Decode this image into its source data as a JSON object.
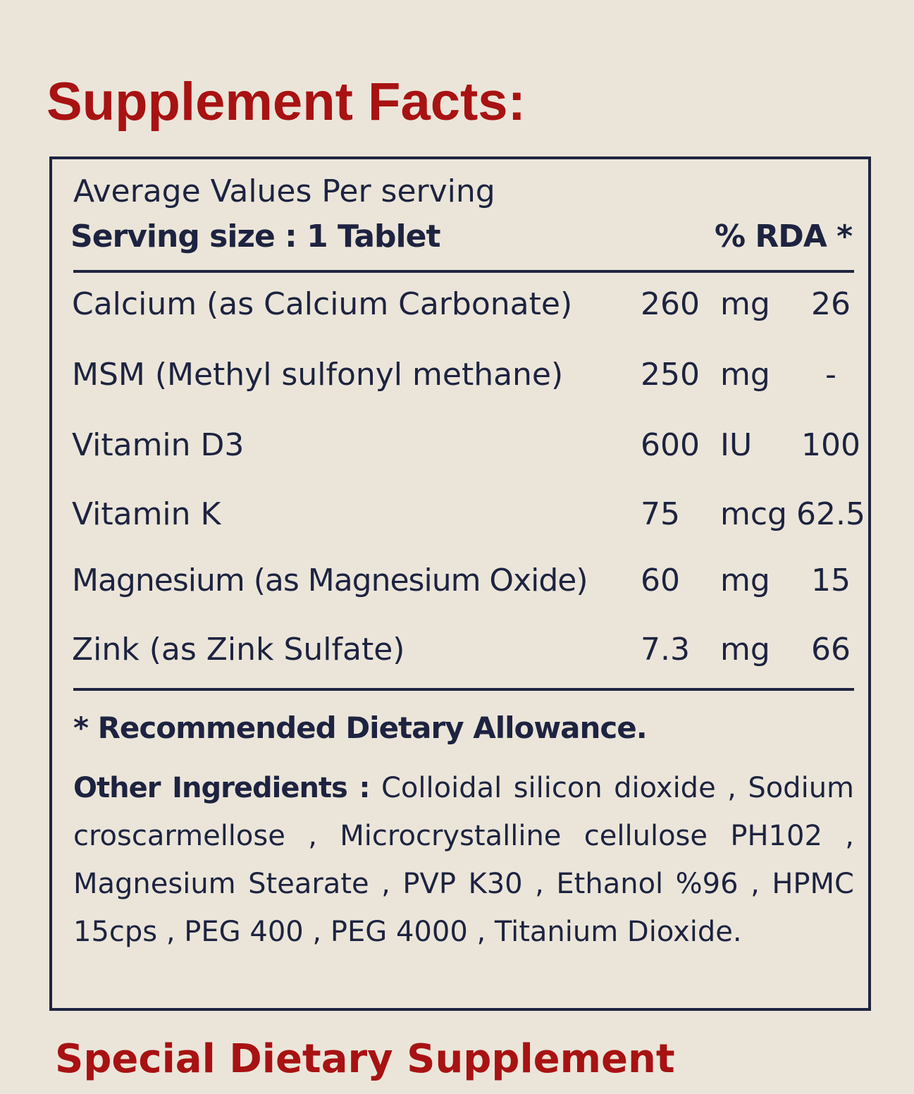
{
  "title": "Supplement Facts:",
  "table": {
    "header": "Average Values Per serving",
    "serving_size": "Serving size : 1 Tablet",
    "rda_header": "% RDA *",
    "rows": [
      {
        "name": "Calcium (as Calcium Carbonate)",
        "amount": "260",
        "unit": "mg",
        "rda": "26"
      },
      {
        "name": "MSM (Methyl sulfonyl methane)",
        "amount": "250",
        "unit": "mg",
        "rda": "-"
      },
      {
        "name": "Vitamin D3",
        "amount": "600",
        "unit": "IU",
        "rda": "100"
      },
      {
        "name": "Vitamin K",
        "amount": "75",
        "unit": "mcg",
        "rda": "62.5"
      },
      {
        "name": "Magnesium (as Magnesium Oxide)",
        "amount": "60",
        "unit": "mg",
        "rda": "15"
      },
      {
        "name": "Zink (as Zink Sulfate)",
        "amount": "7.3",
        "unit": "mg",
        "rda": "66"
      }
    ],
    "footnote": "* Recommended Dietary Allowance.",
    "other_label": "Other Ingredients :",
    "other_text": "Colloidal silicon dioxide , Sodium croscarmellose , Microcrystalline cellulose PH102 , Magnesium Stearate , PVP K30 , Ethanol %96 , HPMC 15cps , PEG 400 , PEG 4000 , Titanium Dioxide."
  },
  "subtitle": "Special Dietary Supplement",
  "colors": {
    "title": "#a81212",
    "text": "#1d2340",
    "background": "#ebe5d9"
  }
}
